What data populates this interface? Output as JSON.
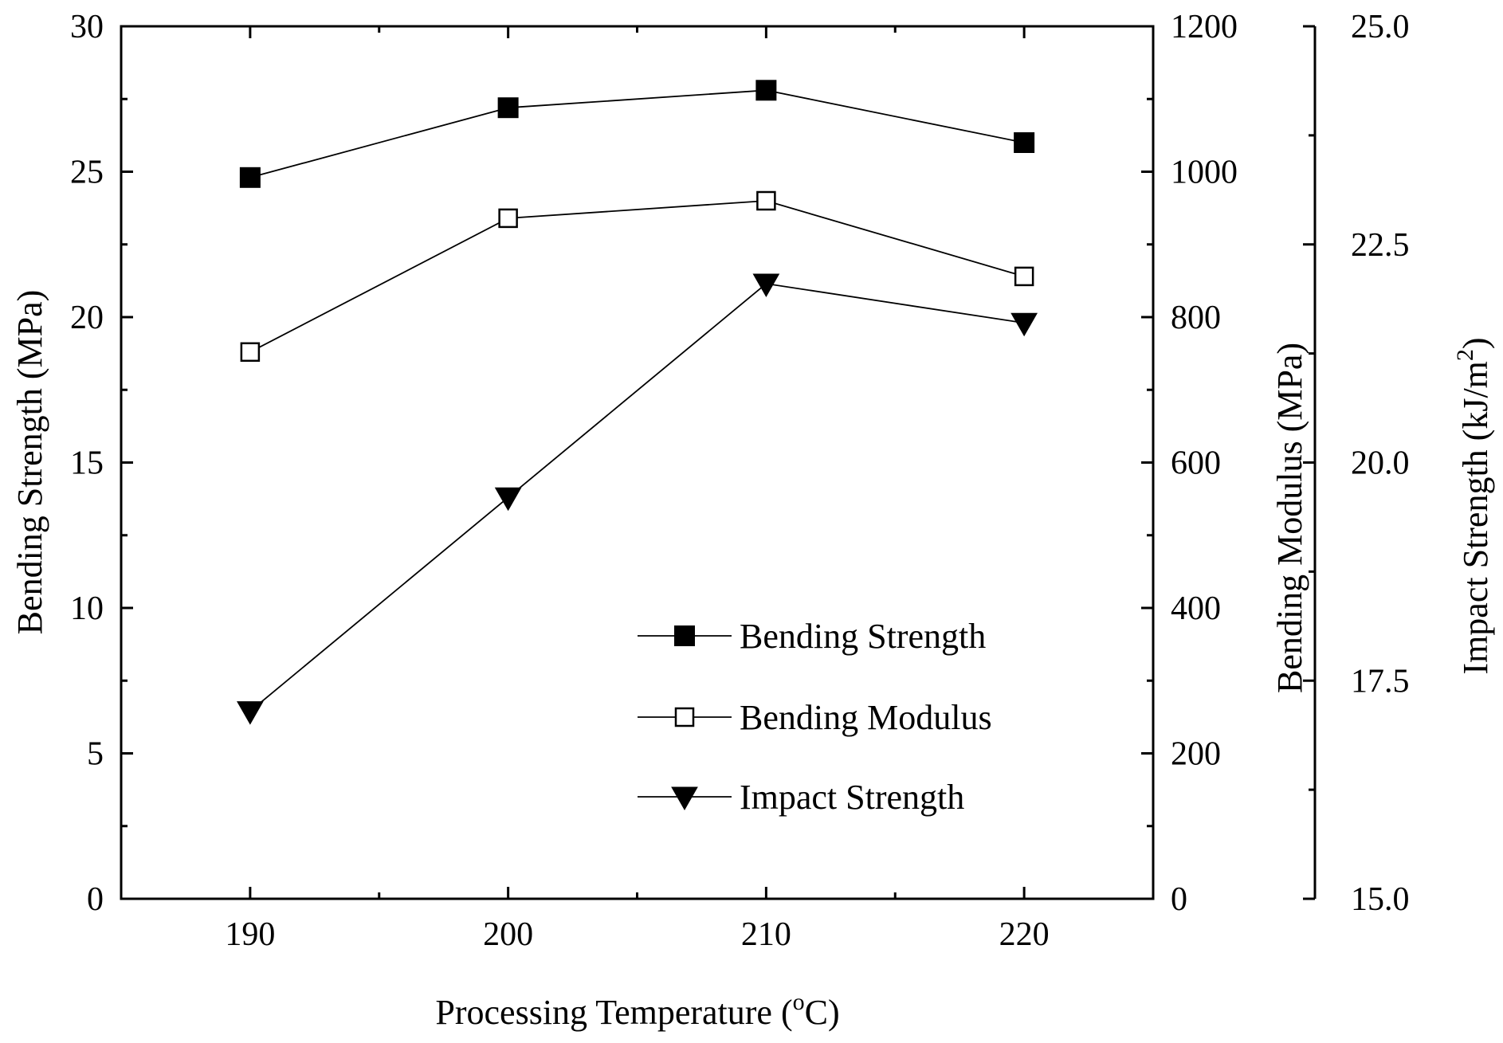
{
  "chart_data": {
    "type": "line",
    "x": [
      190,
      200,
      210,
      220
    ],
    "xlabel": "Processing Temperature (",
    "xlabel_sup": "o",
    "xlabel_end": "C)",
    "xlim": [
      185,
      225
    ],
    "xticks": [
      190,
      200,
      210,
      220
    ],
    "xtick_labels": [
      "190",
      "200",
      "210",
      "220"
    ],
    "axes": [
      {
        "id": "bs",
        "side": "left",
        "label": "Bending Strength (MPa)",
        "ylim": [
          0,
          30
        ],
        "ticks": [
          0,
          5,
          10,
          15,
          20,
          25,
          30
        ],
        "tick_labels": [
          "0",
          "5",
          "10",
          "15",
          "20",
          "25",
          "30"
        ]
      },
      {
        "id": "bm",
        "side": "right",
        "label": "Bending Modulus (MPa)",
        "ylim": [
          0,
          1200
        ],
        "ticks": [
          0,
          200,
          400,
          600,
          800,
          1000,
          1200
        ],
        "tick_labels": [
          "0",
          "200",
          "400",
          "600",
          "800",
          "1000",
          "1200"
        ]
      },
      {
        "id": "is",
        "side": "right-offset",
        "label": "Impact Strength (kJ/m",
        "label_sup": "2",
        "label_end": ")",
        "ylim": [
          15,
          25
        ],
        "ticks": [
          15,
          17.5,
          20,
          22.5,
          25
        ],
        "tick_labels": [
          "15.0",
          "17.5",
          "20.0",
          "22.5",
          "25.0"
        ]
      }
    ],
    "series": [
      {
        "name": "Bending Strength",
        "axis": "bs",
        "marker": "filled-square",
        "values": [
          24.8,
          27.2,
          27.8,
          26.0
        ]
      },
      {
        "name": "Bending Modulus",
        "axis": "bm",
        "marker": "open-square",
        "values": [
          752,
          936,
          960,
          856
        ]
      },
      {
        "name": "Impact Strength",
        "axis": "is",
        "marker": "filled-triangle-down",
        "values": [
          17.15,
          19.6,
          22.05,
          21.6
        ]
      }
    ],
    "legend_position": "lower-right",
    "grid": false,
    "colors": {
      "line": "#000000",
      "marker": "#000000",
      "background": "#ffffff"
    }
  }
}
